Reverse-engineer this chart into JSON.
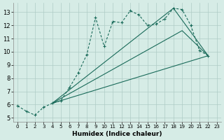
{
  "xlabel": "Humidex (Indice chaleur)",
  "xlim": [
    -0.5,
    23.5
  ],
  "ylim": [
    4.7,
    13.7
  ],
  "xticks": [
    0,
    1,
    2,
    3,
    4,
    5,
    6,
    7,
    8,
    9,
    10,
    11,
    12,
    13,
    14,
    15,
    16,
    17,
    18,
    19,
    20,
    21,
    22,
    23
  ],
  "yticks": [
    5,
    6,
    7,
    8,
    9,
    10,
    11,
    12,
    13
  ],
  "bg_color": "#d6ece6",
  "grid_color": "#aeccc6",
  "line_color": "#1a6b5a",
  "main_curve": {
    "x": [
      0,
      1,
      2,
      3,
      4,
      5,
      6,
      7,
      8,
      9,
      10,
      11,
      12,
      13,
      14,
      15,
      16,
      17,
      18,
      19,
      20,
      21,
      22
    ],
    "y": [
      5.9,
      5.5,
      5.2,
      5.8,
      6.1,
      6.3,
      7.3,
      8.4,
      9.8,
      12.6,
      10.4,
      12.3,
      12.2,
      13.1,
      12.8,
      12.0,
      12.1,
      12.5,
      13.3,
      13.2,
      12.0,
      10.1,
      9.7
    ]
  },
  "fan_lines": [
    {
      "x": [
        4,
        18,
        22
      ],
      "y": [
        6.1,
        13.3,
        9.7
      ]
    },
    {
      "x": [
        4,
        19,
        22
      ],
      "y": [
        6.1,
        11.6,
        9.7
      ]
    },
    {
      "x": [
        4,
        22
      ],
      "y": [
        6.1,
        9.7
      ]
    }
  ]
}
